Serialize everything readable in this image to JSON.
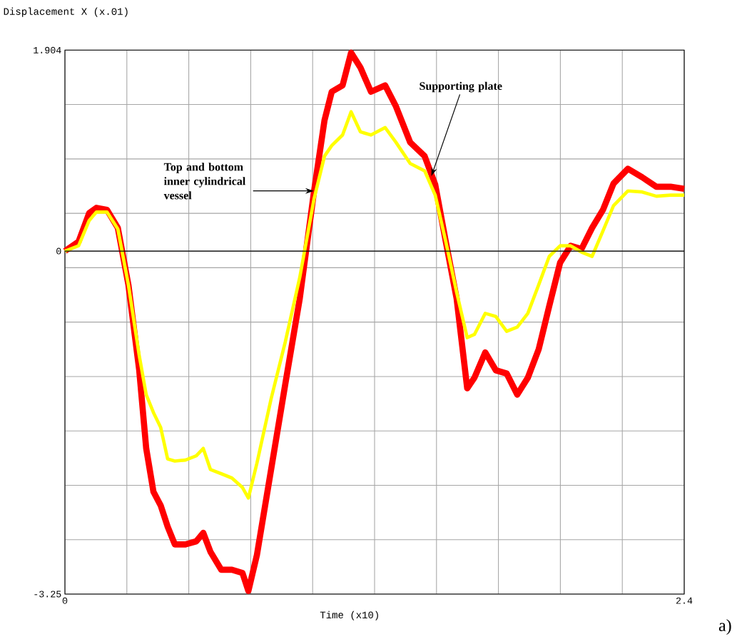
{
  "chart_data": {
    "type": "line",
    "xlabel": "Time (x10)",
    "ylabel": "Displacement X (x.01)",
    "xlim": [
      0,
      2.4
    ],
    "ylim": [
      -3.25,
      1.904
    ],
    "xticks": [
      0,
      {
        "value": 0.24,
        "label": null
      },
      {
        "value": 0.48,
        "label": null
      },
      {
        "value": 0.72,
        "label": null
      },
      {
        "value": 0.96,
        "label": null
      },
      {
        "value": 1.2,
        "label": null
      },
      {
        "value": 1.44,
        "label": null
      },
      {
        "value": 1.68,
        "label": null
      },
      {
        "value": 1.92,
        "label": null
      },
      {
        "value": 2.16,
        "label": null
      },
      2.4
    ],
    "yticks": [
      -3.25,
      {
        "value": -2.7346,
        "label": null
      },
      {
        "value": -2.2192,
        "label": null
      },
      {
        "value": -1.7038,
        "label": null
      },
      {
        "value": -1.1884,
        "label": null
      },
      {
        "value": -0.673,
        "label": null
      },
      {
        "value": -0.1576,
        "label": null
      },
      0,
      {
        "value": 0.3578,
        "label": null
      },
      {
        "value": 0.8732,
        "label": null
      },
      {
        "value": 1.3886,
        "label": null
      },
      1.904
    ],
    "grid": true,
    "ref_lines": [
      {
        "axis": "y",
        "value": 0,
        "color": "#000000"
      }
    ],
    "x": [
      0,
      0.053,
      0.094,
      0.122,
      0.163,
      0.205,
      0.246,
      0.288,
      0.315,
      0.343,
      0.371,
      0.398,
      0.426,
      0.467,
      0.509,
      0.536,
      0.564,
      0.606,
      0.647,
      0.688,
      0.711,
      0.744,
      0.799,
      0.854,
      0.91,
      0.965,
      1.006,
      1.034,
      1.076,
      1.109,
      1.145,
      1.186,
      1.241,
      1.283,
      1.338,
      1.394,
      1.435,
      1.476,
      1.518,
      1.559,
      1.587,
      1.629,
      1.67,
      1.712,
      1.753,
      1.794,
      1.836,
      1.877,
      1.919,
      1.96,
      2.002,
      2.043,
      2.085,
      2.126,
      2.182,
      2.237,
      2.292,
      2.347,
      2.4
    ],
    "series": [
      {
        "color": "#ff0000",
        "values": [
          0,
          0.09,
          0.36,
          0.41,
          0.39,
          0.22,
          -0.32,
          -1.13,
          -1.87,
          -2.28,
          -2.41,
          -2.61,
          -2.78,
          -2.78,
          -2.75,
          -2.67,
          -2.85,
          -3.02,
          -3.02,
          -3.05,
          -3.22,
          -2.88,
          -2.07,
          -1.26,
          -0.45,
          0.56,
          1.24,
          1.51,
          1.57,
          1.88,
          1.74,
          1.51,
          1.57,
          1.37,
          1.03,
          0.9,
          0.63,
          0.09,
          -0.45,
          -1.3,
          -1.2,
          -0.96,
          -1.13,
          -1.16,
          -1.36,
          -1.2,
          -0.93,
          -0.52,
          -0.11,
          0.05,
          0.02,
          0.22,
          0.39,
          0.64,
          0.78,
          0.7,
          0.61,
          0.61,
          0.59
        ]
      },
      {
        "color": "#ffff00",
        "values": [
          0,
          0.05,
          0.29,
          0.37,
          0.37,
          0.21,
          -0.32,
          -0.99,
          -1.36,
          -1.53,
          -1.67,
          -1.97,
          -1.99,
          -1.98,
          -1.94,
          -1.87,
          -2.07,
          -2.11,
          -2.15,
          -2.24,
          -2.34,
          -2.01,
          -1.4,
          -0.86,
          -0.25,
          0.49,
          0.9,
          1.0,
          1.1,
          1.32,
          1.13,
          1.1,
          1.17,
          1.03,
          0.83,
          0.76,
          0.53,
          0.09,
          -0.39,
          -0.82,
          -0.79,
          -0.59,
          -0.62,
          -0.76,
          -0.72,
          -0.59,
          -0.32,
          -0.05,
          0.05,
          0.05,
          -0.01,
          -0.05,
          0.19,
          0.43,
          0.57,
          0.56,
          0.52,
          0.53,
          0.53
        ]
      }
    ],
    "annotations": [
      {
        "text": "Top and bottom inner cylindrical vessel",
        "x": 0.965,
        "y": 0.57
      },
      {
        "text": "Supporting plate",
        "x": 1.42,
        "y": 0.71
      },
      "a)"
    ]
  }
}
